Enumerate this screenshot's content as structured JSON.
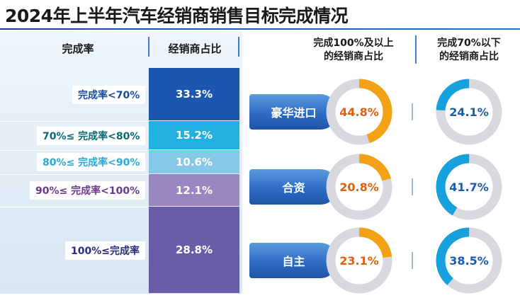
{
  "title": "2024年上半年汽车经销商销售目标完成情况",
  "headers": {
    "completion_rate": "完成率",
    "dealer_share": "经销商占比",
    "ge100_line1": "完成100%及以上",
    "ge100_line2": "的经销商占比",
    "lt70_line1": "完成70%以下",
    "lt70_line2": "的经销商占比"
  },
  "colors": {
    "title_rule": "#1e3f86",
    "ring_track": "#d7d9de",
    "ring_orange": "#f2a214",
    "ring_orange_label": "#e06010",
    "ring_blue": "#16a0dc",
    "ring_blue_label": "#1a5bb0",
    "divider": "#3f7bd0"
  },
  "chart_data": [
    {
      "type": "table",
      "columns": [
        "完成率",
        "经销商占比"
      ],
      "rows": [
        {
          "label": "完成率<70%",
          "value": "33.3%",
          "share": 33.3,
          "label_color": "#1a4a9a",
          "fill": "#1b56b0"
        },
        {
          "label": "70%≤ 完成率<80%",
          "value": "15.2%",
          "share": 15.2,
          "label_color": "#0a6a72",
          "fill": "#22b1de"
        },
        {
          "label": "80%≤ 完成率<90%",
          "value": "10.6%",
          "share": 10.6,
          "label_color": "#2aa9d8",
          "fill": "#86c8e8"
        },
        {
          "label": "90%≤ 完成率<100%",
          "value": "12.1%",
          "share": 12.1,
          "label_color": "#6a3a8a",
          "fill": "#9a86c0"
        },
        {
          "label": "100%≤完成率",
          "value": "28.8%",
          "share": 28.8,
          "label_color": "#2a2f7a",
          "fill": "#6a5ca8"
        }
      ]
    },
    {
      "type": "pie",
      "variant": "donut",
      "categories": [
        "豪华进口",
        "合资",
        "自主"
      ],
      "series": [
        {
          "name": "完成100%及以上的经销商占比",
          "values": [
            44.8,
            20.8,
            23.1
          ],
          "labels": [
            "44.8%",
            "20.8%",
            "23.1%"
          ]
        },
        {
          "name": "完成70%以下的经销商占比",
          "values": [
            24.1,
            41.7,
            38.5
          ],
          "labels": [
            "24.1%",
            "41.7%",
            "38.5%"
          ]
        }
      ]
    }
  ]
}
